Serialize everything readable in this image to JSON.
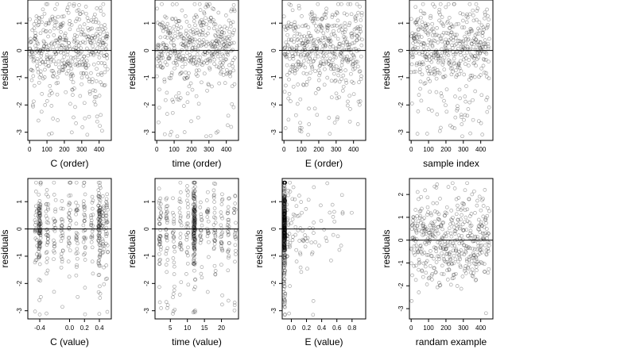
{
  "figure": {
    "ylabel": "residuals"
  },
  "chart_data": [
    {
      "id": "c-order",
      "type": "scatter",
      "xlabel": "C (order)",
      "ylabel": "residuals",
      "xlim": [
        -10,
        470
      ],
      "ylim": [
        -3.3,
        1.85
      ],
      "xticks": [
        0,
        100,
        200,
        300,
        400
      ],
      "xtick_labels": [
        "0",
        "100",
        "200",
        "300",
        "400"
      ],
      "yticks": [
        -3,
        -2,
        -1,
        0,
        1
      ],
      "ytick_labels": [
        "-3",
        "-2",
        "-1",
        "0",
        "1"
      ],
      "hline": 0,
      "n_points": 450,
      "pattern": "order"
    },
    {
      "id": "time-order",
      "type": "scatter",
      "xlabel": "time (order)",
      "ylabel": "residuals",
      "xlim": [
        -10,
        470
      ],
      "ylim": [
        -3.3,
        1.85
      ],
      "xticks": [
        0,
        100,
        200,
        300,
        400
      ],
      "xtick_labels": [
        "0",
        "100",
        "200",
        "300",
        "400"
      ],
      "yticks": [
        -3,
        -2,
        -1,
        0,
        1
      ],
      "ytick_labels": [
        "-3",
        "-2",
        "-1",
        "0",
        "1"
      ],
      "hline": 0,
      "n_points": 450,
      "pattern": "order"
    },
    {
      "id": "e-order",
      "type": "scatter",
      "xlabel": "E (order)",
      "ylabel": "residuals",
      "xlim": [
        -10,
        470
      ],
      "ylim": [
        -3.3,
        1.85
      ],
      "xticks": [
        0,
        100,
        200,
        300,
        400
      ],
      "xtick_labels": [
        "0",
        "100",
        "200",
        "300",
        "400"
      ],
      "yticks": [
        -3,
        -2,
        -1,
        0,
        1
      ],
      "ytick_labels": [
        "-3",
        "-2",
        "-1",
        "0",
        "1"
      ],
      "hline": 0,
      "n_points": 450,
      "pattern": "order"
    },
    {
      "id": "sample-index",
      "type": "scatter",
      "xlabel": "sample index",
      "ylabel": "residuals",
      "xlim": [
        -10,
        470
      ],
      "ylim": [
        -3.3,
        1.85
      ],
      "xticks": [
        0,
        100,
        200,
        300,
        400
      ],
      "xtick_labels": [
        "0",
        "100",
        "200",
        "300",
        "400"
      ],
      "yticks": [
        -3,
        -2,
        -1,
        0,
        1
      ],
      "ytick_labels": [
        "-3",
        "-2",
        "-1",
        "0",
        "1"
      ],
      "hline": 0,
      "n_points": 450,
      "pattern": "order"
    },
    {
      "id": "c-value",
      "type": "scatter",
      "xlabel": "C (value)",
      "ylabel": "residuals",
      "xlim": [
        -0.56,
        0.56
      ],
      "ylim": [
        -3.3,
        1.85
      ],
      "xticks": [
        -0.4,
        0.0,
        0.2,
        0.4
      ],
      "xtick_labels": [
        "-0.4",
        "0.0",
        "0.2",
        "0.4"
      ],
      "yticks": [
        -3,
        -2,
        -1,
        0,
        1
      ],
      "ytick_labels": [
        "-3",
        "-2",
        "-1",
        "0",
        "1"
      ],
      "hline": 0,
      "n_points": 450,
      "pattern": "c_value",
      "x_levels": [
        -0.45,
        -0.4,
        -0.3,
        -0.2,
        -0.1,
        0.0,
        0.1,
        0.2,
        0.3,
        0.4,
        0.45,
        0.5
      ]
    },
    {
      "id": "time-value",
      "type": "scatter",
      "xlabel": "time (value)",
      "ylabel": "residuals",
      "xlim": [
        0.5,
        25
      ],
      "ylim": [
        -3.3,
        1.85
      ],
      "xticks": [
        5,
        10,
        15,
        20
      ],
      "xtick_labels": [
        "5",
        "10",
        "15",
        "20"
      ],
      "yticks": [
        -3,
        -2,
        -1,
        0,
        1
      ],
      "ytick_labels": [
        "-3",
        "-2",
        "-1",
        "0",
        "1"
      ],
      "hline": 0,
      "n_points": 450,
      "pattern": "time_value",
      "x_levels": [
        2,
        4,
        6,
        8,
        10,
        12,
        14,
        16,
        18,
        20,
        22,
        24
      ]
    },
    {
      "id": "e-value",
      "type": "scatter",
      "xlabel": "E (value)",
      "ylabel": "residuals",
      "xlim": [
        -0.12,
        0.98
      ],
      "ylim": [
        -3.3,
        1.85
      ],
      "xticks": [
        0.0,
        0.2,
        0.4,
        0.6,
        0.8
      ],
      "xtick_labels": [
        "0.0",
        "0.2",
        "0.4",
        "0.6",
        "0.8"
      ],
      "yticks": [
        -3,
        -2,
        -1,
        0,
        1
      ],
      "ytick_labels": [
        "-3",
        "-2",
        "-1",
        "0",
        "1"
      ],
      "hline": 0,
      "n_points": 450,
      "pattern": "e_value"
    },
    {
      "id": "random-example",
      "type": "scatter",
      "xlabel": "randam example",
      "ylabel": "residuals",
      "xlim": [
        -10,
        470
      ],
      "ylim": [
        -3.45,
        2.7
      ],
      "xticks": [
        0,
        100,
        200,
        300,
        400
      ],
      "xtick_labels": [
        "0",
        "100",
        "200",
        "300",
        "400"
      ],
      "yticks": [
        -3,
        -2,
        -1,
        0,
        1,
        2
      ],
      "ytick_labels": [
        "-3",
        "-2",
        "-1",
        "0",
        "1",
        "2"
      ],
      "hline": 0,
      "n_points": 450,
      "pattern": "random"
    }
  ]
}
